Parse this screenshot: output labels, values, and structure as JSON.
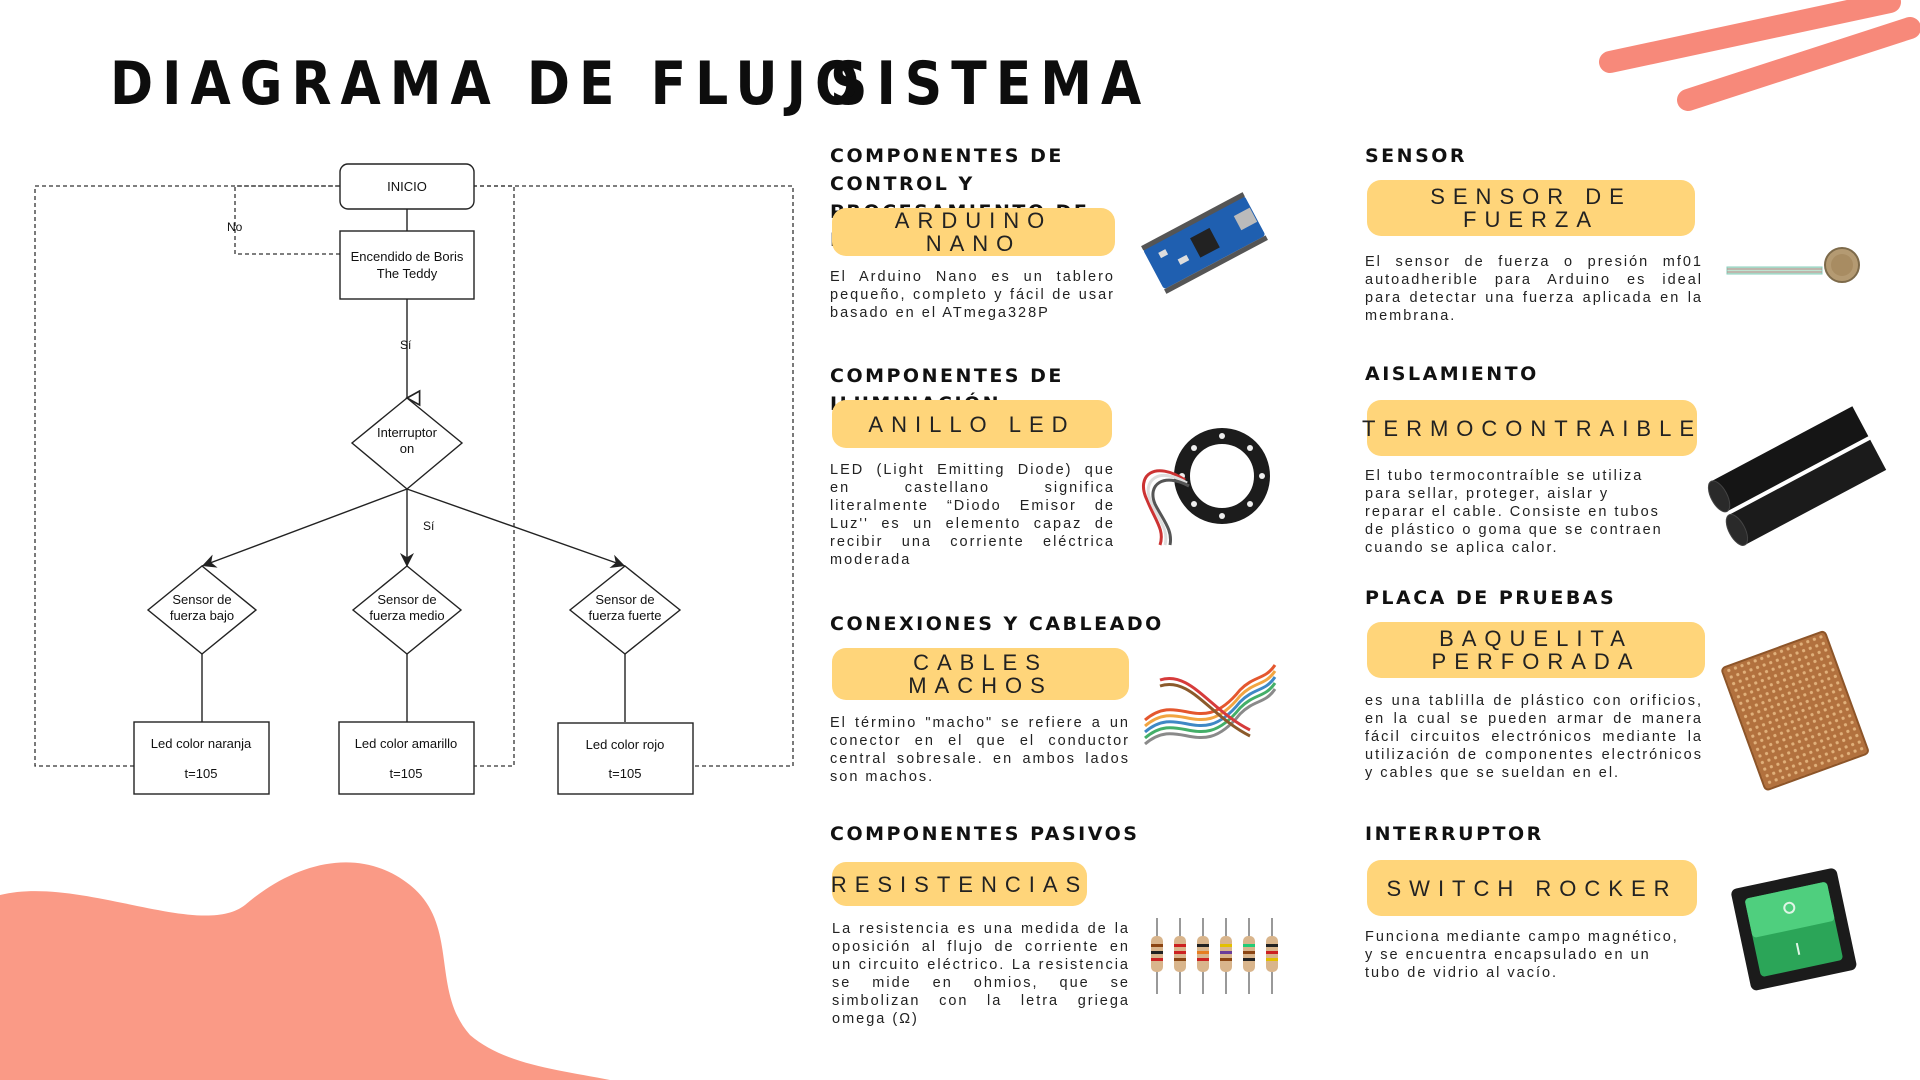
{
  "titles": {
    "left": "DIAGRAMA DE FLUJO",
    "right": "SISTEMA"
  },
  "flowchart": {
    "start": "INICIO",
    "power_on": [
      "Encendido de Boris",
      "The Teddy"
    ],
    "label_no": "No",
    "label_yes_1": "Sí",
    "switch": [
      "Interruptor",
      "on"
    ],
    "label_yes_2": "Sí",
    "sensor_low": [
      "Sensor de",
      "fuerza bajo"
    ],
    "sensor_mid": [
      "Sensor de",
      "fuerza medio"
    ],
    "sensor_high": [
      "Sensor de",
      "fuerza fuerte"
    ],
    "led_orange": [
      "Led color naranja",
      "t=105"
    ],
    "led_yellow": [
      "Led color amarillo",
      "t=105"
    ],
    "led_red": [
      "Led color rojo",
      "t=105"
    ]
  },
  "components": {
    "control": {
      "heading": "Componentes de control y procesamiento de datos",
      "name": "ARDUINO NANO",
      "desc": "El Arduino Nano es un tablero pequeño, completo y fácil de usar basado en el ATmega328P",
      "image_icon": "arduino-nano-board-icon"
    },
    "lighting": {
      "heading": "Componentes de iluminación",
      "name": "ANILLO LED",
      "desc": "LED (Light Emitting Diode) que en castellano significa literalmente “Diodo Emisor de Luz'' es un elemento capaz de recibir una corriente eléctrica moderada",
      "image_icon": "led-ring-icon"
    },
    "wiring": {
      "heading": "Conexiones y cableado",
      "name": "CABLES MACHOS",
      "desc": "El término \"macho\" se refiere a un conector en el que el conductor central sobresale. en ambos lados son machos.",
      "image_icon": "jumper-cables-icon"
    },
    "passive": {
      "heading": "Componentes pasivos",
      "name": "RESISTENCIAS",
      "desc": "La resistencia es una medida de la oposición al flujo de corriente en un circuito eléctrico. La resistencia se mide en ohmios, que se simbolizan con la letra griega omega (Ω)",
      "image_icon": "resistors-icon"
    },
    "sensor": {
      "heading": "Sensor",
      "name": "SENSOR DE FUERZA",
      "desc": "El sensor de fuerza o presión mf01 autoadherible para Arduino es ideal para detectar una fuerza aplicada en la membrana.",
      "image_icon": "force-sensor-icon"
    },
    "insulation": {
      "heading": "Aislamiento",
      "name": "TERMOCONTRAIBLE",
      "desc": "El tubo termocontraíble se utiliza para sellar, proteger, aislar y reparar el cable. Consiste en tubos de plástico o goma que se contraen cuando se aplica calor.",
      "image_icon": "heat-shrink-tube-icon"
    },
    "board": {
      "heading": "Placa de pruebas",
      "name": "BAQUELITA PERFORADA",
      "desc": "es una tablilla de plástico con orificios, en la cual se pueden armar de manera fácil circuitos electrónicos mediante la utilización de componentes electrónicos y cables que se sueldan en el.",
      "image_icon": "perfboard-icon"
    },
    "switch": {
      "heading": "Interruptor",
      "name": "SWITCH ROCKER",
      "desc": "Funciona mediante campo magnético, y se encuentra encapsulado en un tubo de vidrio al vacío.",
      "image_icon": "rocker-switch-icon"
    }
  },
  "colors": {
    "pill": "#ffd57a",
    "blob": "#fa9a86",
    "stroke": "#f7897a"
  }
}
